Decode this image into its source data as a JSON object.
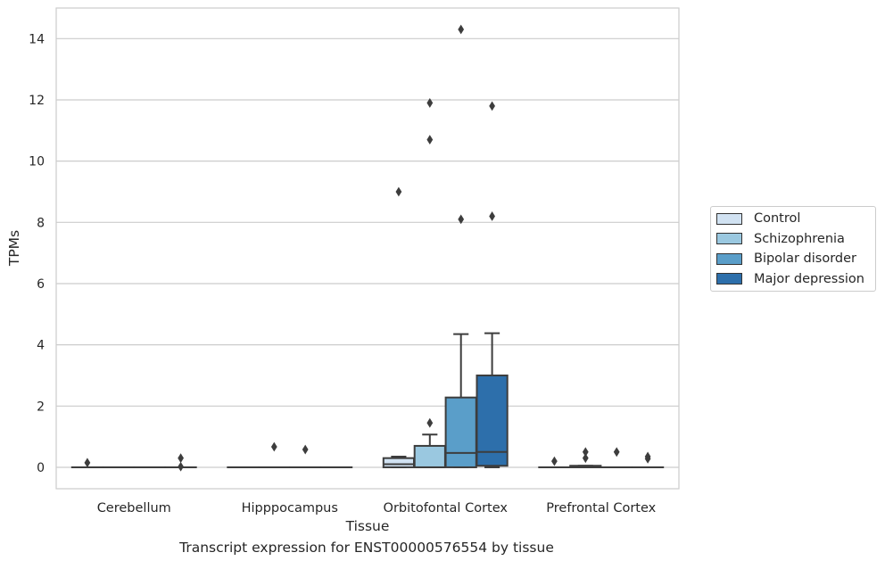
{
  "caption": "Transcript expression for ENST00000576554 by tissue",
  "chart_data": {
    "type": "box",
    "xlabel": "Tissue",
    "ylabel": "TPMs",
    "ylim": [
      -0.7,
      15.0
    ],
    "yticks": [
      0,
      2,
      4,
      6,
      8,
      10,
      12,
      14
    ],
    "grid": true,
    "legend_position": "right",
    "categories": [
      "Cerebellum",
      "Hipppocampus",
      "Orbitofontal Cortex",
      "Prefrontal Cortex"
    ],
    "series": [
      {
        "name": "Control",
        "color": "#d1e2f2",
        "boxes": [
          {
            "q1": 0,
            "median": 0,
            "q3": 0,
            "whislo": 0,
            "whishi": 0,
            "fliers": [
              0.15
            ]
          },
          {
            "q1": 0,
            "median": 0,
            "q3": 0,
            "whislo": 0,
            "whishi": 0,
            "fliers": []
          },
          {
            "q1": 0,
            "median": 0.1,
            "q3": 0.3,
            "whislo": 0,
            "whishi": 0.35,
            "fliers": [
              9.0
            ]
          },
          {
            "q1": 0,
            "median": 0,
            "q3": 0,
            "whislo": 0,
            "whishi": 0,
            "fliers": [
              0.2
            ]
          }
        ]
      },
      {
        "name": "Schizophrenia",
        "color": "#9ac8e0",
        "boxes": [
          {
            "q1": 0,
            "median": 0,
            "q3": 0,
            "whislo": 0,
            "whishi": 0,
            "fliers": []
          },
          {
            "q1": 0,
            "median": 0,
            "q3": 0,
            "whislo": 0,
            "whishi": 0,
            "fliers": [
              0.67
            ]
          },
          {
            "q1": 0,
            "median": 0,
            "q3": 0.7,
            "whislo": 0,
            "whishi": 1.07,
            "fliers": [
              1.45,
              10.7,
              11.9
            ]
          },
          {
            "q1": 0,
            "median": 0,
            "q3": 0.05,
            "whislo": 0,
            "whishi": 0.05,
            "fliers": [
              0.3,
              0.5
            ]
          }
        ]
      },
      {
        "name": "Bipolar disorder",
        "color": "#5a9ec9",
        "boxes": [
          {
            "q1": 0,
            "median": 0,
            "q3": 0,
            "whislo": 0,
            "whishi": 0,
            "fliers": []
          },
          {
            "q1": 0,
            "median": 0,
            "q3": 0,
            "whislo": 0,
            "whishi": 0,
            "fliers": [
              0.58
            ]
          },
          {
            "q1": 0,
            "median": 0.47,
            "q3": 2.28,
            "whislo": 0,
            "whishi": 4.35,
            "fliers": [
              8.1,
              14.3
            ]
          },
          {
            "q1": 0,
            "median": 0,
            "q3": 0,
            "whislo": 0,
            "whishi": 0,
            "fliers": [
              0.5
            ]
          }
        ]
      },
      {
        "name": "Major depression",
        "color": "#2d6fab",
        "boxes": [
          {
            "q1": 0,
            "median": 0,
            "q3": 0,
            "whislo": 0,
            "whishi": 0,
            "fliers": [
              0.3,
              0.02
            ]
          },
          {
            "q1": 0,
            "median": 0,
            "q3": 0,
            "whislo": 0,
            "whishi": 0,
            "fliers": []
          },
          {
            "q1": 0.05,
            "median": 0.5,
            "q3": 3.0,
            "whislo": 0,
            "whishi": 4.38,
            "fliers": [
              8.2,
              11.8
            ]
          },
          {
            "q1": 0,
            "median": 0,
            "q3": 0,
            "whislo": 0,
            "whishi": 0,
            "fliers": [
              0.28,
              0.35
            ]
          }
        ]
      }
    ]
  }
}
